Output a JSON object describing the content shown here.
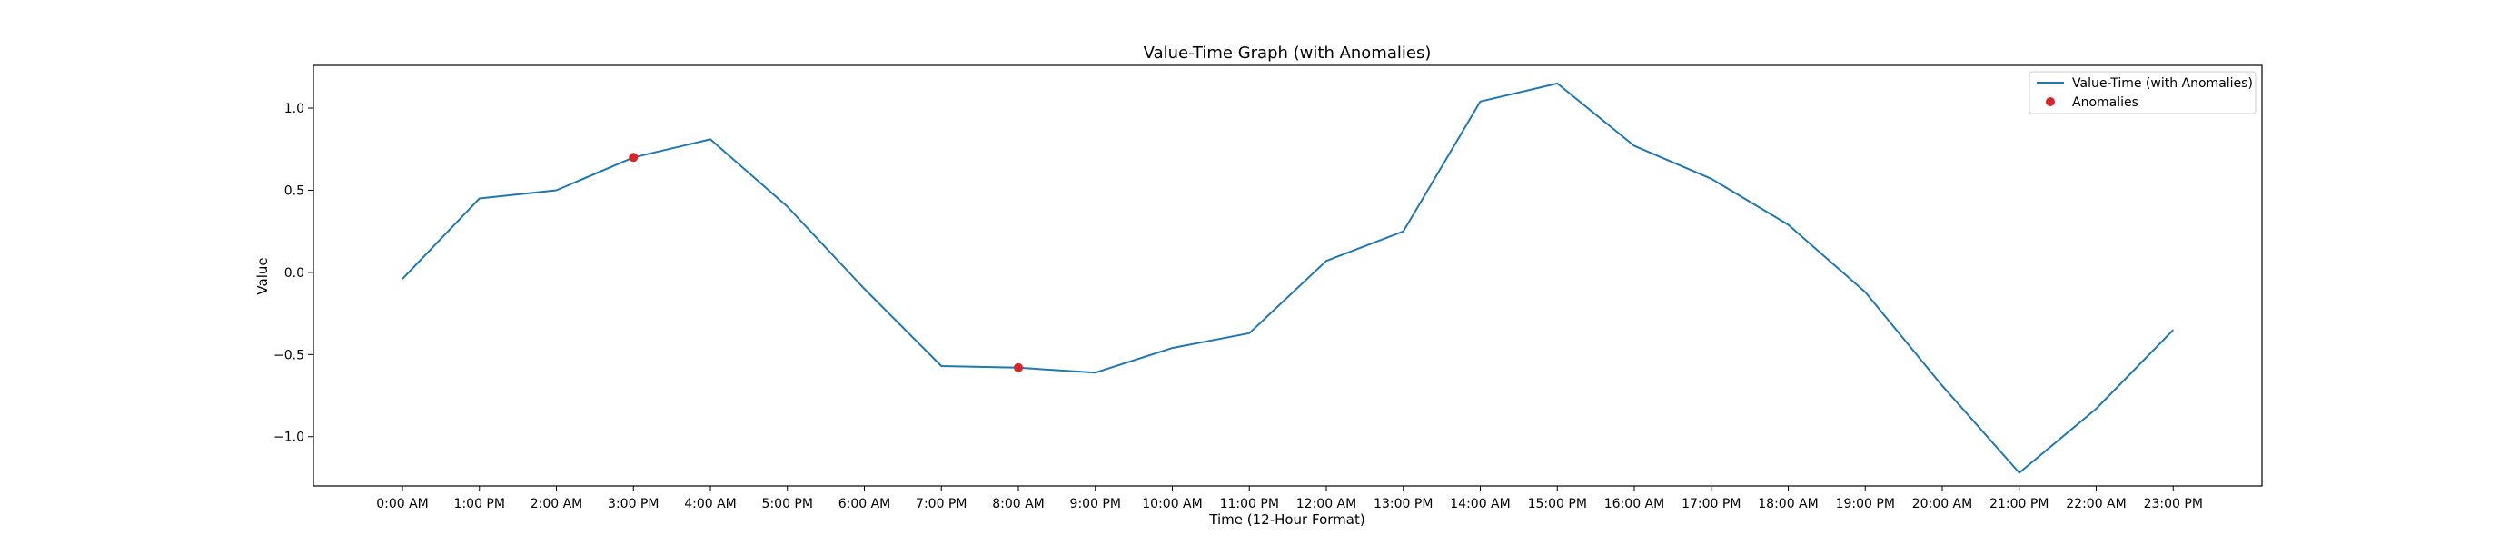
{
  "chart_data": {
    "type": "line",
    "title": "Value-Time Graph (with Anomalies)",
    "xlabel": "Time (12-Hour Format)",
    "ylabel": "Value",
    "categories": [
      "0:00 AM",
      "1:00 PM",
      "2:00 AM",
      "3:00 PM",
      "4:00 AM",
      "5:00 PM",
      "6:00 AM",
      "7:00 PM",
      "8:00 AM",
      "9:00 PM",
      "10:00 AM",
      "11:00 PM",
      "12:00 AM",
      "13:00 PM",
      "14:00 AM",
      "15:00 PM",
      "16:00 AM",
      "17:00 PM",
      "18:00 AM",
      "19:00 PM",
      "20:00 AM",
      "21:00 PM",
      "22:00 AM",
      "23:00 PM"
    ],
    "ylim": [
      -1.3,
      1.26
    ],
    "yticks": [
      "−1.0",
      "−0.5",
      "0.0",
      "0.5",
      "1.0"
    ],
    "ytick_values": [
      -1.0,
      -0.5,
      0.0,
      0.5,
      1.0
    ],
    "grid": false,
    "legend_position": "top-right",
    "series": [
      {
        "name": "Value-Time (with Anomalies)",
        "color": "#1f77b4",
        "values": [
          -0.04,
          0.45,
          0.5,
          0.7,
          0.81,
          0.4,
          -0.1,
          -0.57,
          -0.58,
          -0.61,
          -0.46,
          -0.37,
          0.07,
          0.25,
          1.04,
          1.15,
          0.77,
          0.57,
          0.29,
          -0.12,
          -0.69,
          -1.22,
          -0.83,
          -0.35
        ]
      }
    ],
    "anomalies": {
      "name": "Anomalies",
      "color": "#d62728",
      "points": [
        {
          "x": "3:00 PM",
          "y": 0.7
        },
        {
          "x": "8:00 AM",
          "y": -0.58
        }
      ]
    }
  }
}
